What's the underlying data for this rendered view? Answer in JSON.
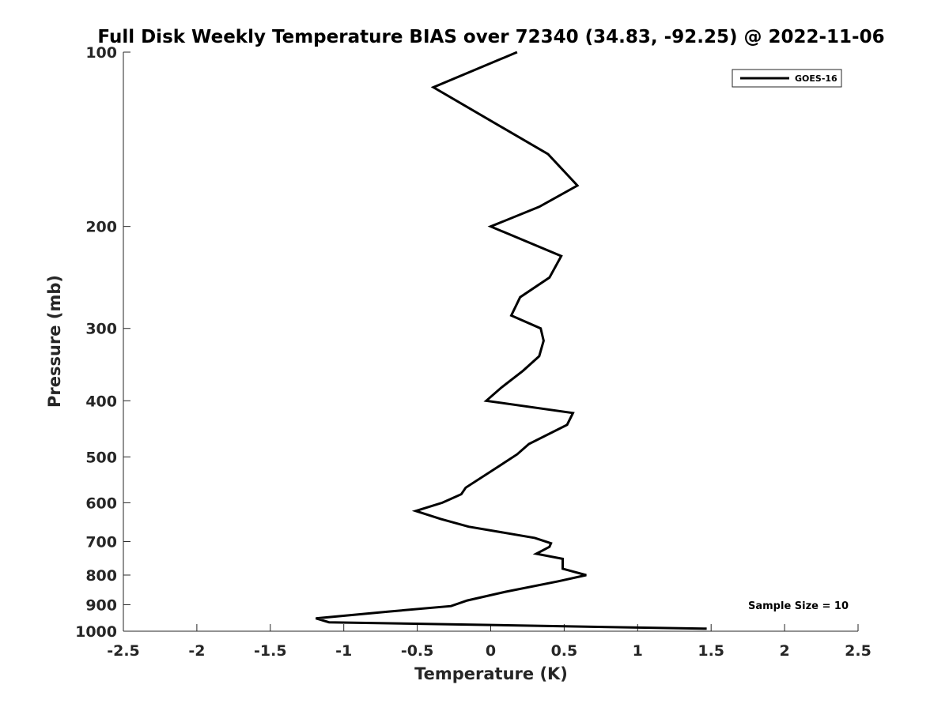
{
  "chart_data": {
    "type": "line",
    "title": "Full Disk Weekly Temperature BIAS over 72340 (34.83, -92.25) @ 2022-11-06",
    "xlabel": "Temperature (K)",
    "ylabel": "Pressure (mb)",
    "x_ticks": [
      "-2.5",
      "-2",
      "-1.5",
      "-1",
      "-0.5",
      "0",
      "0.5",
      "1",
      "1.5",
      "2",
      "2.5"
    ],
    "x_tick_values": [
      -2.5,
      -2,
      -1.5,
      -1,
      -0.5,
      0,
      0.5,
      1,
      1.5,
      2,
      2.5
    ],
    "y_ticks": [
      "100",
      "200",
      "300",
      "400",
      "500",
      "600",
      "700",
      "800",
      "900",
      "1000"
    ],
    "y_tick_values": [
      100,
      200,
      300,
      400,
      500,
      600,
      700,
      800,
      900,
      1000
    ],
    "xlim": [
      -2.5,
      2.5
    ],
    "ylim": [
      100,
      1000
    ],
    "y_scale": "log",
    "y_reversed": true,
    "grid": false,
    "legend_position": "top-right",
    "series": [
      {
        "name": "GOES-16",
        "color": "#000000",
        "x": [
          0.18,
          -0.39,
          0.39,
          0.59,
          0.33,
          0.0,
          0.48,
          0.4,
          0.2,
          0.14,
          0.34,
          0.36,
          0.33,
          0.22,
          0.07,
          -0.03,
          0.56,
          0.52,
          0.26,
          0.18,
          0.0,
          -0.17,
          -0.2,
          -0.33,
          -0.51,
          -0.34,
          -0.15,
          0.3,
          0.41,
          0.4,
          0.31,
          0.49,
          0.49,
          0.65,
          0.46,
          0.1,
          -0.16,
          -0.27,
          -0.7,
          -1.19,
          -1.1,
          1.47
        ],
        "y": [
          100,
          115,
          150,
          170,
          185,
          200,
          225,
          245,
          265,
          285,
          300,
          315,
          335,
          355,
          380,
          400,
          420,
          440,
          475,
          495,
          530,
          565,
          580,
          600,
          620,
          640,
          660,
          690,
          705,
          715,
          735,
          750,
          780,
          800,
          820,
          855,
          885,
          905,
          925,
          950,
          965,
          990
        ]
      }
    ],
    "annotation": "Sample Size = 10"
  }
}
